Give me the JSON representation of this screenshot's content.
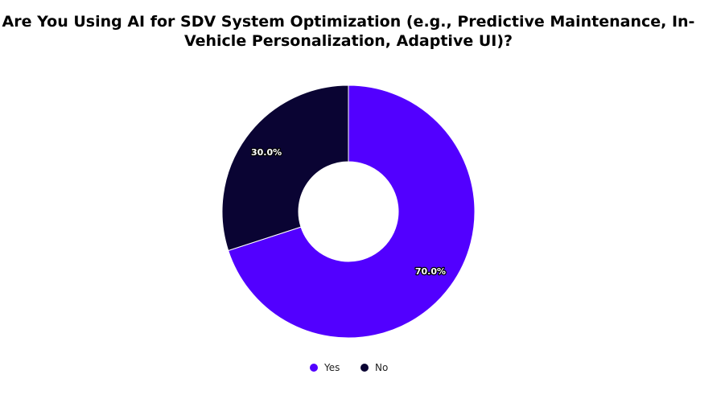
{
  "chart_data": {
    "type": "donut",
    "title": [
      "Are You Using AI for SDV System Optimization (e.g., Predictive Maintenance, In-",
      "Vehicle Personalization, Adaptive UI)?"
    ],
    "categories": [
      "Yes",
      "No"
    ],
    "values": [
      70,
      30
    ],
    "value_labels": [
      "70.0%",
      "30.0%"
    ],
    "colors": [
      "#5200ff",
      "#0a0433"
    ],
    "legend": "bottom"
  }
}
